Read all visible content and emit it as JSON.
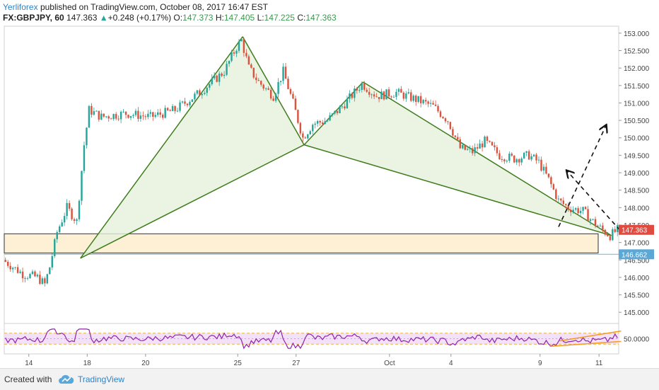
{
  "header": {
    "author": "Yerliforex",
    "published_text": "published on TradingView.com, October 08, 2017 16:47 EST",
    "symbol": "FX:GBPJPY, 60",
    "last_price": "147.363",
    "change_arrow": "▲",
    "change": "+0.248 (+0.17%)",
    "open_label": "O:",
    "open": "147.373",
    "high_label": "H:",
    "high": "147.405",
    "low_label": "L:",
    "low": "147.225",
    "close_label": "C:",
    "close": "147.363"
  },
  "footer": {
    "created_with": "Created with",
    "brand": "TradingView",
    "logo_icon": "tradingview-cloud-icon"
  },
  "colors": {
    "up": "#26a69a",
    "down": "#d9533e",
    "pattern_line": "#3f7d1e",
    "pattern_fill": "#e6f1dc",
    "zone_fill": "#fdf0d5",
    "support_line": "#6fb3d8",
    "rsi": "#8e24aa",
    "rsi_band": "#f3e1f7",
    "price_badge": "#e04a3f",
    "level_badge": "#5ba7d6"
  },
  "chart_data": {
    "type": "candlestick",
    "symbol": "GBPJPY",
    "timeframe": "60",
    "y_ticks": [
      "145.000",
      "145.500",
      "146.000",
      "146.500",
      "147.000",
      "147.500",
      "148.000",
      "148.500",
      "149.000",
      "149.500",
      "150.000",
      "150.500",
      "151.000",
      "151.500",
      "152.000",
      "152.500",
      "153.000"
    ],
    "ylim": [
      144.7,
      153.2
    ],
    "x_ticks": [
      "14",
      "18",
      "20",
      "25",
      "27",
      "Oct",
      "4",
      "9",
      "11"
    ],
    "price_badge": "147.363",
    "support_level": "146.662",
    "support_zone": [
      146.7,
      147.25
    ],
    "harmonic_pattern": {
      "X": 146.55,
      "A": 152.9,
      "B": 149.8,
      "C": 151.6,
      "D": 147.2
    },
    "projection_arrows": [
      {
        "from": 147.35,
        "to": 149.05
      },
      {
        "from": 147.35,
        "to": 150.35
      }
    ],
    "path_anchors": [
      [
        0,
        146.5
      ],
      [
        8,
        146.1
      ],
      [
        14,
        146.0
      ],
      [
        17,
        145.8
      ],
      [
        19,
        146.3
      ],
      [
        22,
        147.3
      ],
      [
        26,
        148.0
      ],
      [
        30,
        147.6
      ],
      [
        33,
        149.8
      ],
      [
        35,
        150.8
      ],
      [
        40,
        150.6
      ],
      [
        50,
        150.7
      ],
      [
        60,
        150.6
      ],
      [
        70,
        150.8
      ],
      [
        80,
        151.3
      ],
      [
        90,
        151.9
      ],
      [
        95,
        152.6
      ],
      [
        97,
        152.8
      ],
      [
        100,
        152.0
      ],
      [
        104,
        151.6
      ],
      [
        110,
        151.2
      ],
      [
        114,
        151.9
      ],
      [
        118,
        151.0
      ],
      [
        122,
        150.0
      ],
      [
        126,
        150.4
      ],
      [
        132,
        150.5
      ],
      [
        138,
        150.9
      ],
      [
        143,
        151.3
      ],
      [
        146,
        151.55
      ],
      [
        152,
        151.2
      ],
      [
        160,
        151.3
      ],
      [
        168,
        151.1
      ],
      [
        175,
        150.9
      ],
      [
        181,
        150.5
      ],
      [
        186,
        149.7
      ],
      [
        191,
        149.6
      ],
      [
        196,
        149.9
      ],
      [
        202,
        149.5
      ],
      [
        208,
        149.4
      ],
      [
        214,
        149.5
      ],
      [
        218,
        149.3
      ],
      [
        222,
        148.8
      ],
      [
        226,
        148.2
      ],
      [
        230,
        148.0
      ],
      [
        236,
        147.9
      ],
      [
        240,
        147.6
      ],
      [
        244,
        147.35
      ],
      [
        247,
        147.2
      ],
      [
        250,
        147.36
      ]
    ],
    "rsi": {
      "label": "50.0000",
      "band": [
        30,
        70
      ],
      "mid": 50
    }
  }
}
